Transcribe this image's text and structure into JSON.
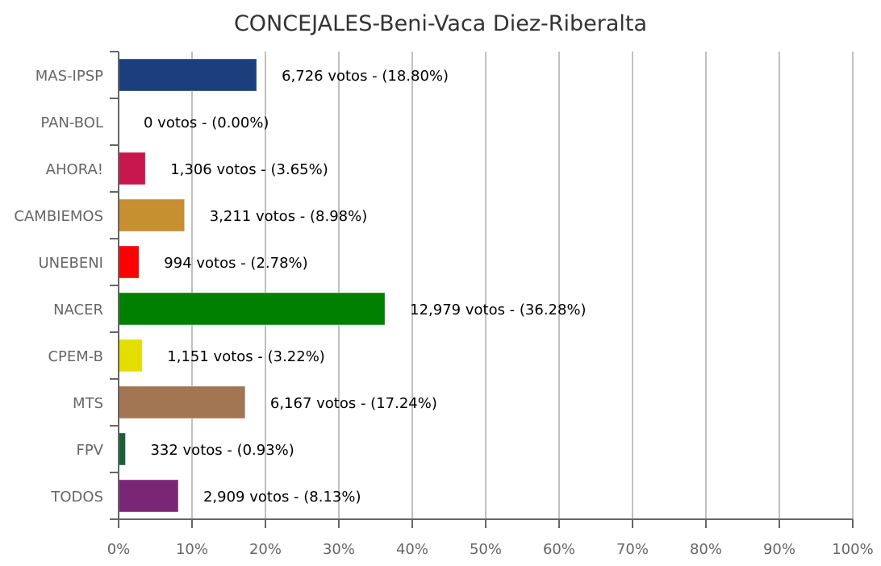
{
  "chart_data": {
    "type": "bar",
    "orientation": "horizontal",
    "title": "CONCEJALES-Beni-Vaca Diez-Riberalta",
    "xlabel": "",
    "ylabel": "",
    "xlim": [
      0,
      100
    ],
    "grid": true,
    "x_ticks": [
      "0%",
      "10%",
      "20%",
      "30%",
      "40%",
      "50%",
      "60%",
      "70%",
      "80%",
      "90%",
      "100%"
    ],
    "categories": [
      "MAS-IPSP",
      "PAN-BOL",
      "AHORA!",
      "CAMBIEMOS",
      "UNEBENI",
      "NACER",
      "CPEM-B",
      "MTS",
      "FPV",
      "TODOS"
    ],
    "values": [
      18.8,
      0.0,
      3.65,
      8.98,
      2.78,
      36.28,
      3.22,
      17.24,
      0.93,
      8.13
    ],
    "votes": [
      "6,726",
      "0",
      "1,306",
      "3,211",
      "994",
      "12,979",
      "1,151",
      "6,167",
      "332",
      "2,909"
    ],
    "data_labels": [
      "6,726 votos - (18.80%)",
      "0 votos - (0.00%)",
      "1,306 votos - (3.65%)",
      "3,211 votos - (8.98%)",
      "994 votos - (2.78%)",
      "12,979 votos - (36.28%)",
      "1,151 votos - (3.22%)",
      "6,167 votos - (17.24%)",
      "332 votos - (0.93%)",
      "2,909 votos - (8.13%)"
    ],
    "colors": [
      "#1a3f7c",
      "#ffffff",
      "#c8174f",
      "#c68f2f",
      "#ff0000",
      "#008000",
      "#e3dd00",
      "#a27653",
      "#1c5e3a",
      "#7b2575"
    ]
  }
}
